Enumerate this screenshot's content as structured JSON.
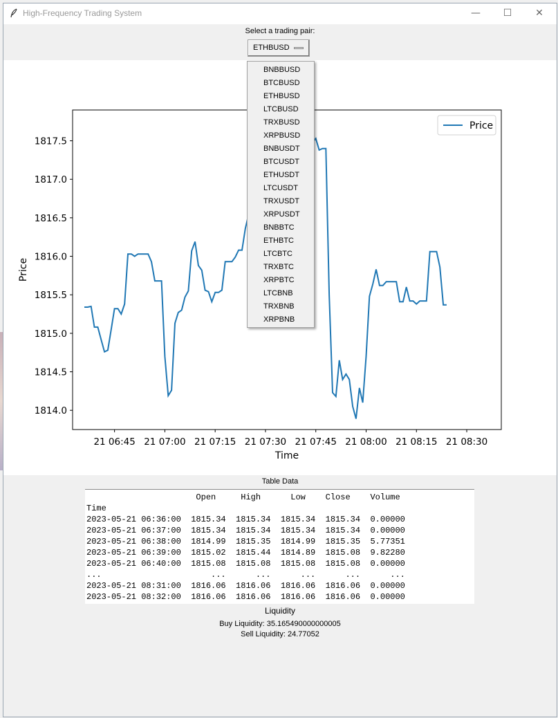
{
  "window": {
    "title": "High-Frequency Trading System",
    "minimize": "—",
    "maximize": "☐",
    "close": "✕"
  },
  "selector": {
    "label": "Select a trading pair:",
    "selected": "ETHBUSD",
    "options": [
      "BNBBUSD",
      "BTCBUSD",
      "ETHBUSD",
      "LTCBUSD",
      "TRXBUSD",
      "XRPBUSD",
      "BNBUSDT",
      "BTCUSDT",
      "ETHUSDT",
      "LTCUSDT",
      "TRXUSDT",
      "XRPUSDT",
      "BNBBTC",
      "ETHBTC",
      "LTCBTC",
      "TRXBTC",
      "XRPBTC",
      "LTCBNB",
      "TRXBNB",
      "XRPBNB"
    ]
  },
  "chart_data": {
    "type": "line",
    "title": "",
    "xlabel": "Time",
    "ylabel": "Price",
    "grid": false,
    "legend": "top-right",
    "ylim": [
      1813.75,
      1817.9
    ],
    "xlim_minutes": [
      6.6,
      10.1
    ],
    "x_start": "2023-05-21 06:36:00",
    "x_step_minutes": 1,
    "x_tick_labels": [
      "21 06:45",
      "21 07:00",
      "21 07:15",
      "21 07:30",
      "21 07:45",
      "21 08:00",
      "21 08:15",
      "21 08:30"
    ],
    "x_tick_minutes": [
      405,
      420,
      435,
      450,
      465,
      480,
      495,
      510
    ],
    "y_ticks": [
      1814.0,
      1814.5,
      1815.0,
      1815.5,
      1816.0,
      1816.5,
      1817.0,
      1817.5
    ],
    "series": [
      {
        "name": "Price",
        "color": "#1f77b4",
        "values": [
          1815.34,
          1815.34,
          1815.35,
          1815.08,
          1815.08,
          1814.92,
          1814.76,
          1814.78,
          1815.05,
          1815.32,
          1815.32,
          1815.25,
          1815.38,
          1816.03,
          1816.03,
          1816.0,
          1816.03,
          1816.03,
          1816.03,
          1816.03,
          1815.93,
          1815.68,
          1815.68,
          1815.68,
          1814.7,
          1814.19,
          1814.26,
          1815.13,
          1815.27,
          1815.3,
          1815.47,
          1815.55,
          1816.07,
          1816.19,
          1815.88,
          1815.82,
          1815.56,
          1815.54,
          1815.41,
          1815.53,
          1815.53,
          1815.56,
          1815.93,
          1815.93,
          1815.93,
          1815.99,
          1816.08,
          1816.08,
          1816.36,
          1816.55,
          1816.89,
          1817.05,
          1817.2,
          1817.35,
          1817.36,
          1817.36,
          1817.41,
          1817.31,
          1817.15,
          1817.15,
          1817.56,
          1817.7,
          1817.7,
          1817.7,
          1817.6,
          1817.53,
          1816.65,
          1817.28,
          1817.48,
          1817.53,
          1817.38,
          1817.4,
          1817.4,
          1815.5,
          1814.23,
          1814.18,
          1814.65,
          1814.4,
          1814.47,
          1814.4,
          1814.05,
          1813.89,
          1814.29,
          1814.1,
          1814.7,
          1815.48,
          1815.64,
          1815.83,
          1815.62,
          1815.62,
          1815.67,
          1815.67,
          1815.67,
          1815.67,
          1815.41,
          1815.41,
          1815.6,
          1815.42,
          1815.42,
          1815.38,
          1815.42,
          1815.42,
          1815.42,
          1816.06,
          1816.06,
          1816.06,
          1815.86,
          1815.37,
          1815.37
        ]
      }
    ]
  },
  "table": {
    "title": "Table Data",
    "lines": [
      "                      Open     High      Low    Close    Volume",
      "Time",
      "2023-05-21 06:36:00  1815.34  1815.34  1815.34  1815.34  0.00000",
      "2023-05-21 06:37:00  1815.34  1815.34  1815.34  1815.34  0.00000",
      "2023-05-21 06:38:00  1814.99  1815.35  1814.99  1815.35  5.77351",
      "2023-05-21 06:39:00  1815.02  1815.44  1814.89  1815.08  9.82280",
      "2023-05-21 06:40:00  1815.08  1815.08  1815.08  1815.08  0.00000",
      "...                      ...      ...      ...      ...      ...",
      "2023-05-21 08:31:00  1816.06  1816.06  1816.06  1816.06  0.00000",
      "2023-05-21 08:32:00  1816.06  1816.06  1816.06  1816.06  0.00000"
    ]
  },
  "liquidity": {
    "title": "Liquidity",
    "buy": "Buy Liquidity: 35.165490000000005",
    "sell": "Sell Liquidity: 24.77052"
  }
}
